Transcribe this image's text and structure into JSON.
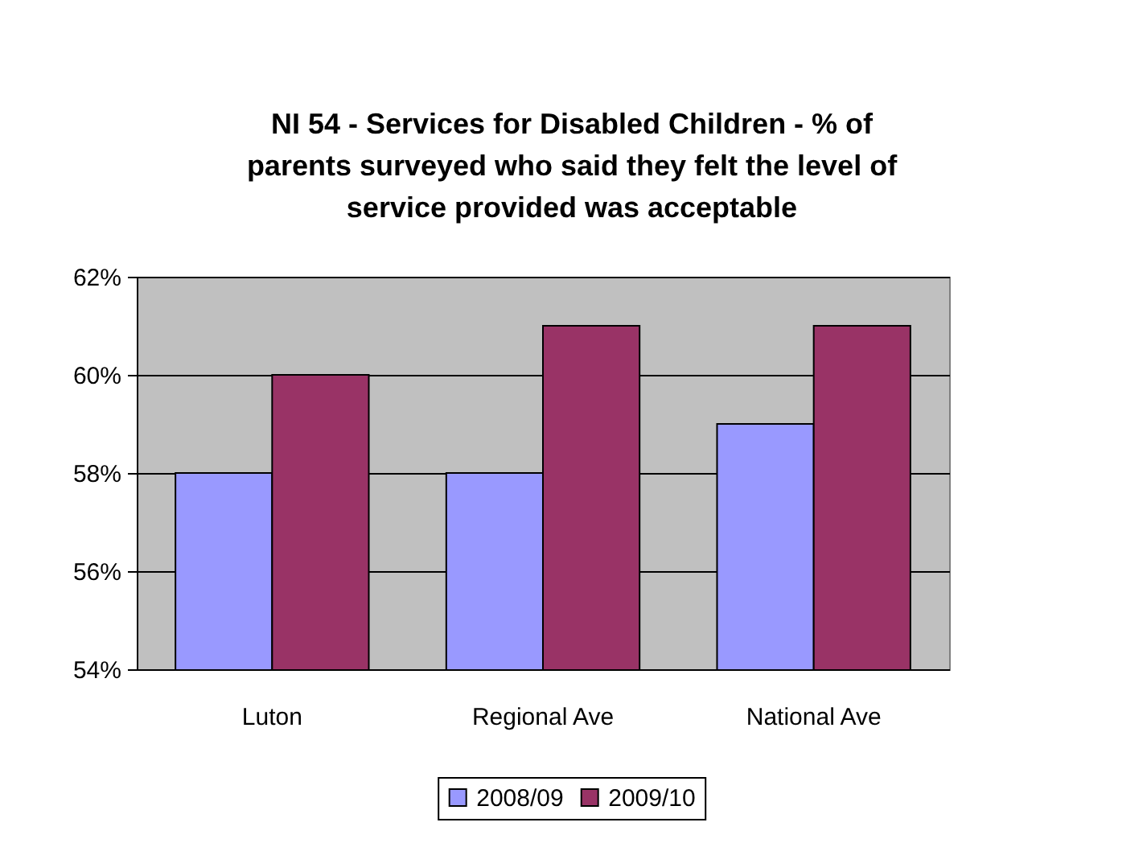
{
  "chart_data": {
    "type": "bar",
    "title": "NI 54 - Services for Disabled Children - % of parents surveyed who said they felt the level of service provided was acceptable",
    "categories": [
      "Luton",
      "Regional Ave",
      "National Ave"
    ],
    "series": [
      {
        "name": "2008/09",
        "color": "#9999ff",
        "values": [
          58,
          58,
          59
        ]
      },
      {
        "name": "2009/10",
        "color": "#993366",
        "values": [
          60,
          61,
          61
        ]
      }
    ],
    "ylim": [
      54,
      62
    ],
    "yticks": [
      {
        "value": 54,
        "label": "54%"
      },
      {
        "value": 56,
        "label": "56%"
      },
      {
        "value": 58,
        "label": "58%"
      },
      {
        "value": 60,
        "label": "60%"
      },
      {
        "value": 62,
        "label": "62%"
      }
    ],
    "grid": "y",
    "legend": "bottom"
  }
}
